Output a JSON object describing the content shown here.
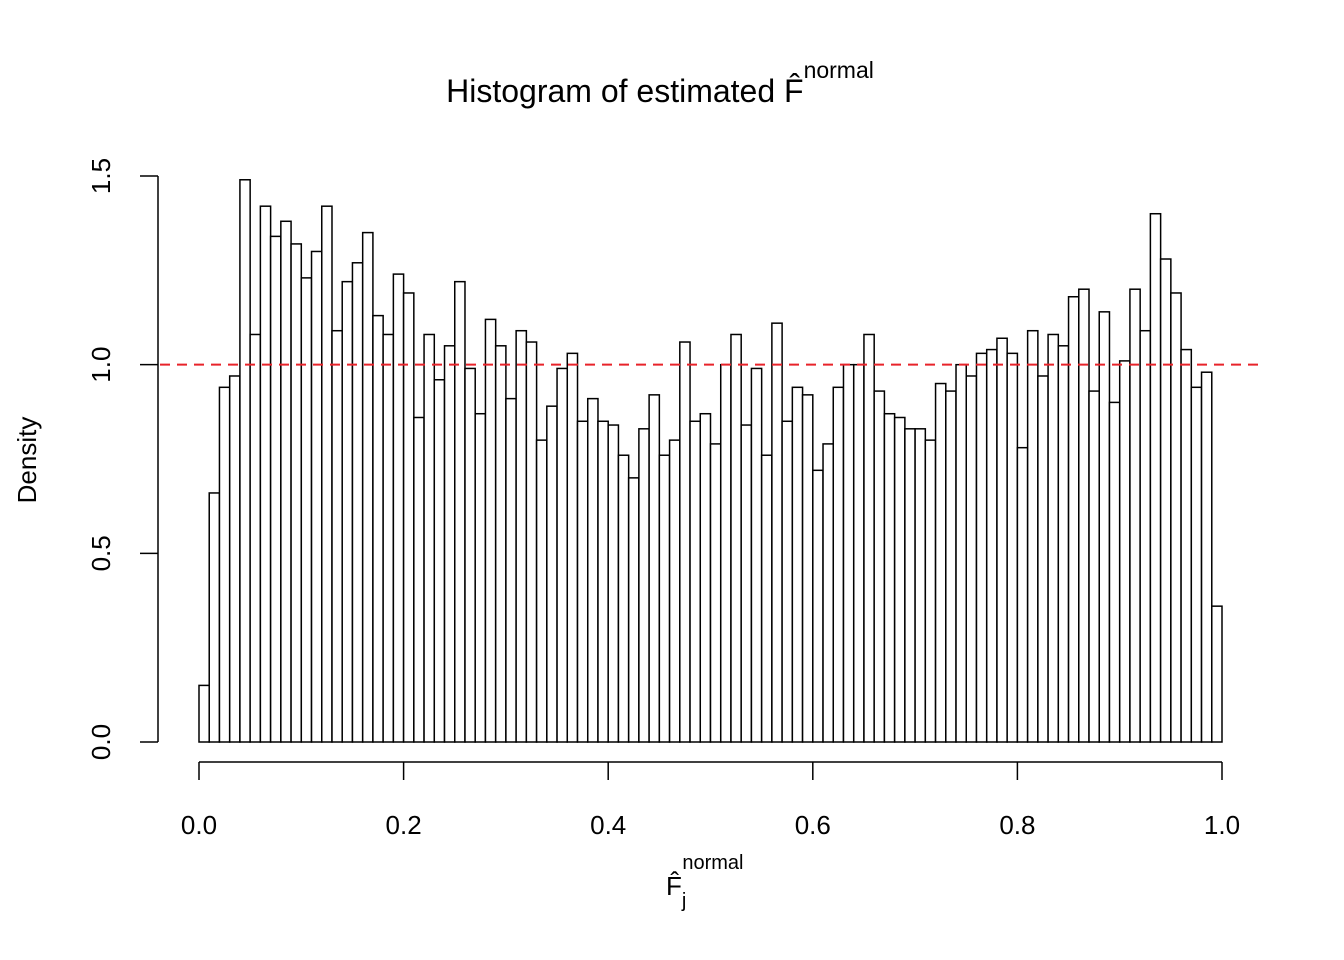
{
  "chart_data": {
    "type": "histogram",
    "title": "Histogram of estimated F̂",
    "title_superscript": "normal",
    "xlabel": {
      "base": "F̂",
      "sub": "j",
      "sup": "normal"
    },
    "ylabel": "Density",
    "bins": [
      0,
      0.01,
      0.02,
      0.03,
      0.04,
      0.05,
      0.06,
      0.07,
      0.08,
      0.09,
      0.1,
      0.11,
      0.12,
      0.13,
      0.14,
      0.15,
      0.16,
      0.17,
      0.18,
      0.19,
      0.2,
      0.21,
      0.22,
      0.23,
      0.24,
      0.25,
      0.26,
      0.27,
      0.28,
      0.29,
      0.3,
      0.31,
      0.32,
      0.33,
      0.34,
      0.35,
      0.36,
      0.37,
      0.38,
      0.39,
      0.4,
      0.41,
      0.42,
      0.43,
      0.44,
      0.45,
      0.46,
      0.47,
      0.48,
      0.49,
      0.5,
      0.51,
      0.52,
      0.53,
      0.54,
      0.55,
      0.56,
      0.57,
      0.58,
      0.59,
      0.6,
      0.61,
      0.62,
      0.63,
      0.64,
      0.65,
      0.66,
      0.67,
      0.68,
      0.69,
      0.7,
      0.71,
      0.72,
      0.73,
      0.74,
      0.75,
      0.76,
      0.77,
      0.78,
      0.79,
      0.8,
      0.81,
      0.82,
      0.83,
      0.84,
      0.85,
      0.86,
      0.87,
      0.88,
      0.89,
      0.9,
      0.91,
      0.92,
      0.93,
      0.94,
      0.95,
      0.96,
      0.97,
      0.98,
      0.99,
      1
    ],
    "values": [
      0.15,
      0.66,
      0.94,
      0.97,
      1.49,
      1.08,
      1.42,
      1.34,
      1.38,
      1.32,
      1.23,
      1.3,
      1.42,
      1.09,
      1.22,
      1.27,
      1.35,
      1.13,
      1.08,
      1.24,
      1.19,
      0.86,
      1.08,
      0.96,
      1.05,
      1.22,
      0.99,
      0.87,
      1.12,
      1.05,
      0.91,
      1.09,
      1.06,
      0.8,
      0.89,
      0.99,
      1.03,
      0.85,
      0.91,
      0.85,
      0.84,
      0.76,
      0.7,
      0.83,
      0.92,
      0.76,
      0.8,
      1.06,
      0.85,
      0.87,
      0.79,
      1.0,
      1.08,
      0.84,
      0.99,
      0.76,
      1.11,
      0.85,
      0.94,
      0.92,
      0.72,
      0.79,
      0.94,
      1.0,
      1.0,
      1.08,
      0.93,
      0.87,
      0.86,
      0.83,
      0.83,
      0.8,
      0.95,
      0.93,
      1.0,
      0.97,
      1.03,
      1.04,
      1.07,
      1.03,
      0.78,
      1.09,
      0.97,
      1.08,
      1.05,
      1.18,
      1.2,
      0.93,
      1.14,
      0.9,
      1.01,
      1.2,
      1.09,
      1.4,
      1.28,
      1.19,
      1.04,
      0.94,
      0.98,
      0.36
    ],
    "color": "#ffffff",
    "edge_color": "#000000",
    "reference_line": {
      "value": 1,
      "color": "#e8232a",
      "style": "dashed"
    },
    "xlim": [
      0,
      1
    ],
    "xticks": [
      {
        "value": 0,
        "label": "0.0"
      },
      0.2,
      0.4,
      0.6,
      0.8,
      {
        "value": 1,
        "label": "1.0"
      }
    ],
    "ylim": [
      0,
      1.5
    ],
    "yticks": [
      {
        "value": 0,
        "label": "0.0"
      },
      0.5,
      {
        "value": 1,
        "label": "1.0"
      },
      1.5
    ]
  }
}
